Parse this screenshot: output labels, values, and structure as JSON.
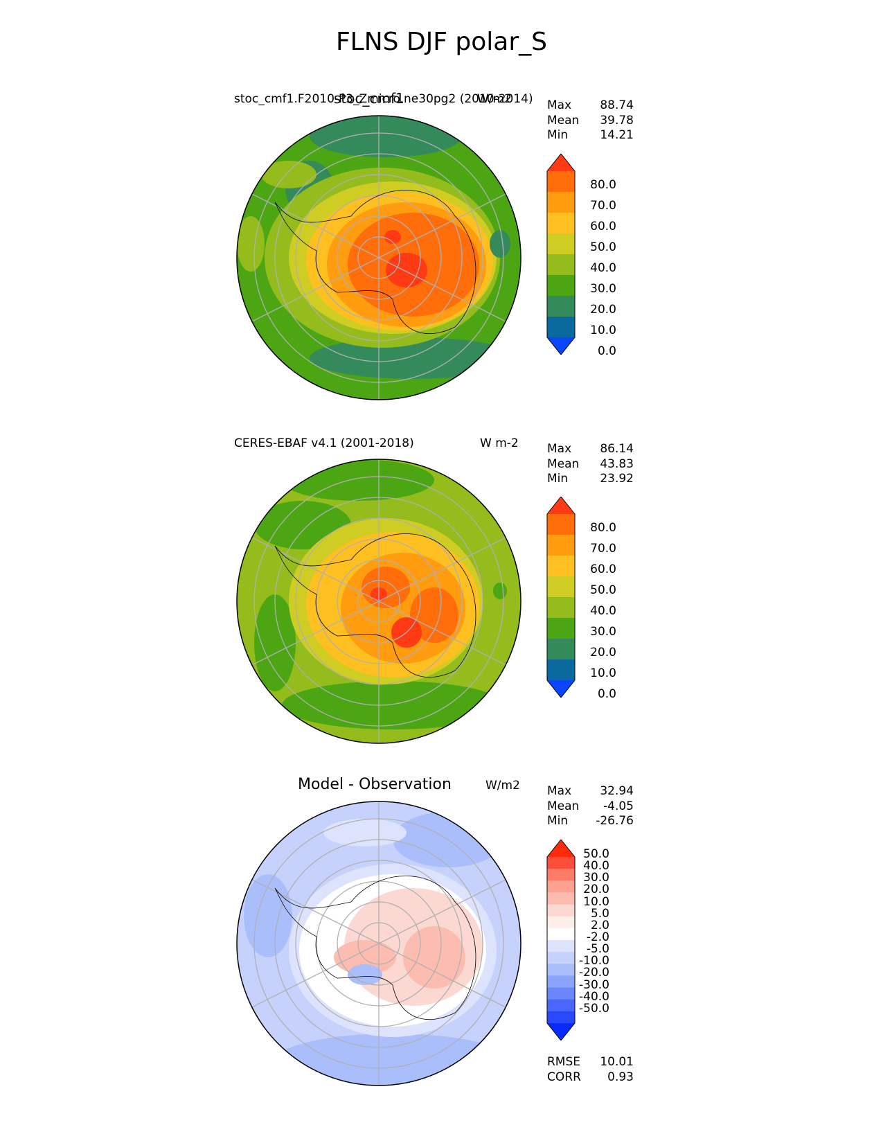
{
  "title": "FLNS DJF polar_S",
  "panels": [
    {
      "left_label": "stoc_cmf1.F2010-P3_Zmicro.ne30pg2 (2010-2014)",
      "center_label": "stoc_cmf1",
      "right_label": "W/m2",
      "stats": {
        "max_label": "Max",
        "max": "88.74",
        "mean_label": "Mean",
        "mean": "39.78",
        "min_label": "Min",
        "min": "14.21"
      }
    },
    {
      "left_label": "CERES-EBAF v4.1 (2001-2018)",
      "center_label": "",
      "right_label": "W m-2",
      "stats": {
        "max_label": "Max",
        "max": "86.14",
        "mean_label": "Mean",
        "mean": "43.83",
        "min_label": "Min",
        "min": "23.92"
      }
    },
    {
      "left_label": "",
      "center_label": "Model - Observation",
      "right_label": "W/m2",
      "stats": {
        "max_label": "Max",
        "max": "32.94",
        "mean_label": "Mean",
        "mean": "-4.05",
        "min_label": "Min",
        "min": "-26.76"
      }
    }
  ],
  "colorbars": {
    "absolute": {
      "tick_labels": [
        "80.0",
        "70.0",
        "60.0",
        "50.0",
        "40.0",
        "30.0",
        "20.0",
        "10.0",
        "0.0"
      ],
      "colors_top_to_bottom": [
        "#ff3a14",
        "#ff6e0a",
        "#ff9c10",
        "#fdc020",
        "#cfcc24",
        "#94bc1c",
        "#4ca614",
        "#358a5c",
        "#0a6aa0",
        "#0a46fc"
      ]
    },
    "difference": {
      "tick_labels": [
        "50.0",
        "40.0",
        "30.0",
        "20.0",
        "10.0",
        "5.0",
        "2.0",
        "-2.0",
        "-5.0",
        "-10.0",
        "-20.0",
        "-30.0",
        "-40.0",
        "-50.0"
      ],
      "colors_top_to_bottom": [
        "#ff2a0a",
        "#fc4e38",
        "#fc7c66",
        "#fca090",
        "#fcbcb0",
        "#fcd8d2",
        "#fdeeea",
        "#ffffff",
        "#dde3fc",
        "#c6d2fc",
        "#aabefc",
        "#8aa4fc",
        "#6b86fc",
        "#4a66fc",
        "#2a48fc",
        "#0a2afc"
      ]
    }
  },
  "difference_metrics": {
    "rmse_label": "RMSE",
    "rmse": "10.01",
    "corr_label": "CORR",
    "corr": "0.93"
  }
}
